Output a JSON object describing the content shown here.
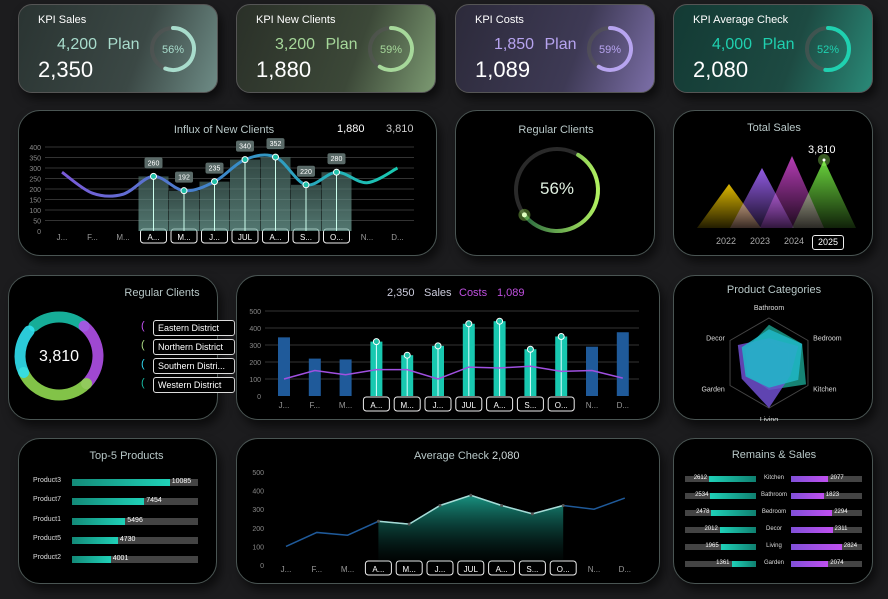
{
  "kpis": [
    {
      "title": "KPI Sales",
      "plan": "4,200",
      "plan_label": "Plan",
      "value": "2,350",
      "percent": "56%",
      "progress": 56,
      "color": "#a8dccc",
      "bg": "linear-gradient(110deg,#2a3432,#3b4845 60%,#6e8c86)"
    },
    {
      "title": "KPI New Clients",
      "plan": "3,200",
      "plan_label": "Plan",
      "value": "1,880",
      "percent": "59%",
      "progress": 59,
      "color": "#a6d89a",
      "bg": "linear-gradient(110deg,#2a3028,#3c4838 60%,#7c9a72)"
    },
    {
      "title": "KPI Costs",
      "plan": "1,850",
      "plan_label": "Plan",
      "value": "1,089",
      "percent": "59%",
      "progress": 59,
      "color": "#b7a4f0",
      "bg": "linear-gradient(110deg,#2c2a3a,#3e3a55 60%,#7c6fa8)"
    },
    {
      "title": "KPI Average Check",
      "plan": "4,000",
      "plan_label": "Plan",
      "value": "2,080",
      "percent": "52%",
      "progress": 52,
      "color": "#1fd1b0",
      "bg": "linear-gradient(110deg,#133a34,#1d4a42 60%,#2a8a78)"
    }
  ],
  "months": [
    "J...",
    "F...",
    "M...",
    "A...",
    "M...",
    "J...",
    "JUL",
    "A...",
    "S...",
    "O...",
    "N...",
    "D..."
  ],
  "selected_months": [
    3,
    4,
    5,
    6,
    7,
    8,
    9
  ],
  "influx": {
    "title": "Influx of New Clients",
    "value": "1,880",
    "total": "3,810"
  },
  "regular_gauge": {
    "title": "Regular Clients",
    "percent": "56%",
    "progress": 56
  },
  "total_sales": {
    "title": "Total Sales",
    "value": "3,810",
    "years": [
      "2022",
      "2023",
      "2024",
      "2025"
    ],
    "selected": "2025"
  },
  "regular_donut": {
    "title": "Regular Clients",
    "value": "3,810",
    "districts": [
      {
        "name": "Eastern District",
        "color": "#c050f0"
      },
      {
        "name": "Northern District",
        "color": "#a8d880"
      },
      {
        "name": "Southern Distri...",
        "color": "#30d8f0"
      },
      {
        "name": "Western District",
        "color": "#18b8a0"
      }
    ]
  },
  "sales_costs": {
    "sales_value": "2,350",
    "sales_label": "Sales",
    "costs_label": "Costs",
    "costs_value": "1,089"
  },
  "product_categories": {
    "title": "Product Categories",
    "axes": [
      "Bathroom",
      "Bedroom",
      "Kitchen",
      "Living",
      "Garden",
      "Decor"
    ]
  },
  "top5": {
    "title": "Top-5 Products",
    "items": [
      {
        "name": "Product3",
        "value": "10085"
      },
      {
        "name": "Product7",
        "value": "7454"
      },
      {
        "name": "Product1",
        "value": "5496"
      },
      {
        "name": "Product5",
        "value": "4730"
      },
      {
        "name": "Product2",
        "value": "4001"
      }
    ]
  },
  "avg_check": {
    "title": "Average Check",
    "value": "2,080"
  },
  "remains": {
    "title": "Remains & Sales",
    "rows": [
      {
        "cat": "Kitchen",
        "remain": "2612",
        "sales": "2077"
      },
      {
        "cat": "Bathroom",
        "remain": "2534",
        "sales": "1823"
      },
      {
        "cat": "Bedroom",
        "remain": "2478",
        "sales": "2294"
      },
      {
        "cat": "Decor",
        "remain": "2012",
        "sales": "2311"
      },
      {
        "cat": "Living",
        "remain": "1965",
        "sales": "2824"
      },
      {
        "cat": "Garden",
        "remain": "1361",
        "sales": "2074"
      }
    ]
  },
  "chart_data": [
    {
      "type": "line",
      "title": "Influx of New Clients",
      "categories": [
        "J",
        "F",
        "M",
        "A",
        "M",
        "J",
        "JUL",
        "A",
        "S",
        "O",
        "N",
        "D"
      ],
      "values": [
        280,
        180,
        175,
        260,
        192,
        235,
        340,
        352,
        220,
        280,
        230,
        300
      ],
      "labeled": [
        3,
        4,
        5,
        6,
        7,
        8,
        9
      ],
      "ylim": [
        0,
        400
      ],
      "yticks": [
        0,
        50,
        100,
        150,
        200,
        250,
        300,
        350,
        400
      ],
      "grid": true
    },
    {
      "type": "bar",
      "categories": [
        "J",
        "F",
        "M",
        "A",
        "M",
        "J",
        "JUL",
        "A",
        "S",
        "O",
        "N",
        "D"
      ],
      "series": [
        {
          "name": "Sales",
          "values": [
            345,
            220,
            215,
            320,
            240,
            295,
            425,
            440,
            275,
            350,
            290,
            375
          ]
        },
        {
          "name": "Costs",
          "values": [
            100,
            150,
            125,
            155,
            155,
            100,
            170,
            165,
            175,
            145,
            150,
            105
          ]
        }
      ],
      "ylim": [
        0,
        500
      ],
      "yticks": [
        0,
        100,
        200,
        300,
        400,
        500
      ],
      "grid": true
    },
    {
      "type": "area",
      "title": "Average Check",
      "categories": [
        "J",
        "F",
        "M",
        "A",
        "M",
        "J",
        "JUL",
        "A",
        "S",
        "O",
        "N",
        "D"
      ],
      "values": [
        100,
        175,
        160,
        235,
        220,
        320,
        375,
        320,
        275,
        320,
        300,
        360
      ],
      "ylim": [
        0,
        500
      ],
      "yticks": [
        0,
        100,
        200,
        300,
        400,
        500
      ],
      "grid": false
    },
    {
      "type": "area",
      "title": "Total Sales",
      "categories": [
        "2022",
        "2023",
        "2024",
        "2025"
      ],
      "values": [
        0.55,
        0.75,
        0.9,
        0.85
      ],
      "colors": [
        "#e8c000",
        "#9a60f0",
        "#c040c0",
        "#70e040"
      ]
    },
    {
      "type": "radar",
      "title": "Product Categories",
      "categories": [
        "Bathroom",
        "Bedroom",
        "Kitchen",
        "Living",
        "Garden",
        "Decor"
      ],
      "series": [
        {
          "values": [
            0.85,
            0.85,
            0.95,
            0.6,
            0.55,
            0.6
          ],
          "color": "#1a9a88"
        },
        {
          "values": [
            0.55,
            0.75,
            0.55,
            1.0,
            0.7,
            0.8
          ],
          "color": "#7050d0"
        },
        {
          "values": [
            0.75,
            0.85,
            0.75,
            0.55,
            0.6,
            0.7
          ],
          "color": "#20b8c8"
        }
      ]
    }
  ]
}
